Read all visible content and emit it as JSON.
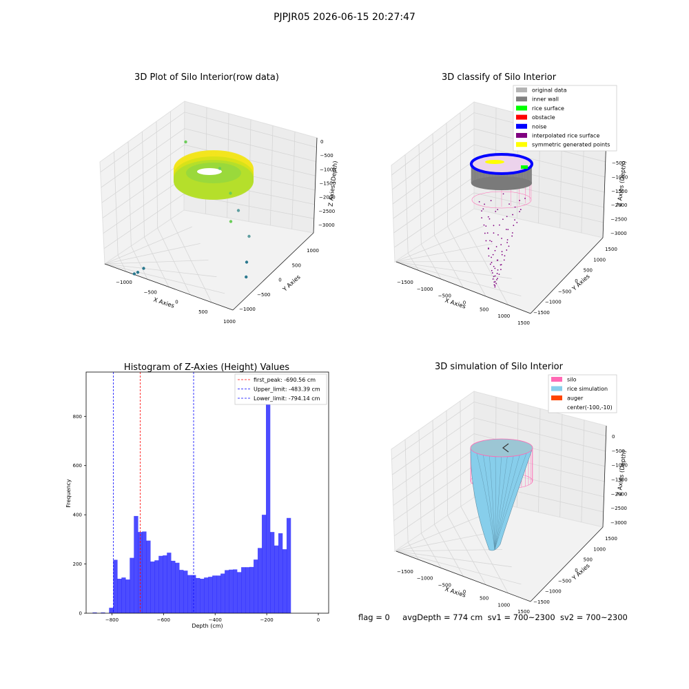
{
  "figure": {
    "suptitle": "PJPJR05 2026-06-15 20:27:47",
    "status_line": {
      "flag": "flag = 0",
      "avg_depth": "avgDepth = 774 cm",
      "sv1": "sv1 = 700~2300",
      "sv2": "sv2 = 700~2300"
    }
  },
  "chart_data": [
    {
      "type": "scatter3d",
      "title": "3D Plot of Silo Interior(row data)",
      "xlabel": "X Axies",
      "ylabel": "Y Axies",
      "zlabel": "Z Axies (Depth)",
      "x_ticks": [
        "−1000",
        "−500",
        "0",
        "500",
        "1000"
      ],
      "y_ticks": [
        "−1000",
        "−500",
        "0",
        "500",
        "1000"
      ],
      "z_ticks": [
        "0",
        "−500",
        "−1000",
        "−1500",
        "−2000",
        "−2500",
        "−3000"
      ],
      "xlim": [
        -1300,
        1100
      ],
      "ylim": [
        -1200,
        1200
      ],
      "zlim": [
        -3300,
        100
      ],
      "colormap": "viridis (yellow = shallow, teal = deep)",
      "ring": {
        "inner_radius": 600,
        "outer_radius": 950,
        "z_top": -100,
        "z_bottom": -700
      },
      "noise_points": [
        {
          "x": -900,
          "y": 600,
          "z": -800
        },
        {
          "x": 500,
          "y": -300,
          "z": -1600
        },
        {
          "x": 700,
          "y": -200,
          "z": -2300
        },
        {
          "x": 900,
          "y": -500,
          "z": -2800
        },
        {
          "x": 1050,
          "y": -700,
          "z": -3000
        },
        {
          "x": 300,
          "y": 100,
          "z": -2000
        },
        {
          "x": -200,
          "y": -1100,
          "z": -3100
        },
        {
          "x": -250,
          "y": -1150,
          "z": -3250
        },
        {
          "x": -280,
          "y": -1180,
          "z": -3300
        },
        {
          "x": 100,
          "y": 200,
          "z": -1550
        },
        {
          "x": -300,
          "y": 500,
          "z": -1300
        }
      ]
    },
    {
      "type": "scatter3d",
      "title": "3D classify of Silo Interior",
      "xlabel": "X Axies",
      "ylabel": "Y Axies",
      "zlabel": "Z Axies (Depth)",
      "x_ticks": [
        "−1500",
        "−1000",
        "−500",
        "0",
        "500",
        "1000",
        "1500"
      ],
      "y_ticks": [
        "−1500",
        "−1000",
        "−500",
        "0",
        "500",
        "1000",
        "1500"
      ],
      "z_ticks": [
        "−500",
        "−1000",
        "−1500",
        "−2000",
        "−2500",
        "−3000"
      ],
      "xlim": [
        -1700,
        1700
      ],
      "ylim": [
        -1700,
        1700
      ],
      "zlim": [
        -3000,
        -100
      ],
      "legend": [
        {
          "label": "original data",
          "color": "#b4b4b4"
        },
        {
          "label": "inner wall",
          "color": "#808080"
        },
        {
          "label": "rice surface",
          "color": "#00ff00"
        },
        {
          "label": "obstacle",
          "color": "#ff0000"
        },
        {
          "label": "noise",
          "color": "#0000ff"
        },
        {
          "label": "interpolated rice surface",
          "color": "#800080"
        },
        {
          "label": "symmetric generated points",
          "color": "#ffff00"
        }
      ],
      "legend_position": "top-right",
      "silo": {
        "radius": 1000,
        "z_top": -100,
        "z_bottom": -700,
        "wall_bottom": -1000
      },
      "cone": {
        "apex": {
          "x": -150,
          "y": -100,
          "z": -2950
        }
      }
    },
    {
      "type": "bar",
      "title": "Histogram of Z-Axies (Height) Values",
      "xlabel": "Depth (cm)",
      "ylabel": "Frequency",
      "xlim": [
        -900,
        40
      ],
      "ylim": [
        0,
        980
      ],
      "x_ticks": [
        -800,
        -600,
        -400,
        -200,
        0
      ],
      "y_ticks": [
        0,
        200,
        400,
        600,
        800
      ],
      "color": "#0000ff",
      "bin_edges_start": -875,
      "bin_width": 16,
      "counts": [
        3,
        0,
        3,
        0,
        22,
        217,
        140,
        145,
        137,
        225,
        395,
        330,
        332,
        295,
        210,
        215,
        233,
        235,
        246,
        213,
        205,
        176,
        173,
        155,
        155,
        143,
        140,
        145,
        148,
        153,
        153,
        161,
        175,
        177,
        178,
        167,
        187,
        187,
        188,
        218,
        265,
        400,
        920,
        330,
        275,
        325,
        260,
        387
      ],
      "reference_lines": [
        {
          "label": "first_peak: -690.56 cm",
          "x": -690.56,
          "color": "#ff0000"
        },
        {
          "label": "Upper_limit: -483.39 cm",
          "x": -483.39,
          "color": "#0000ff"
        },
        {
          "label": "Lower_limit: -794.14 cm",
          "x": -794.14,
          "color": "#0000ff"
        }
      ],
      "legend_position": "top-right"
    },
    {
      "type": "surface3d",
      "title": "3D simulation of Silo Interior",
      "xlabel": "X Axies",
      "ylabel": "Y Axies",
      "zlabel": "Z Axies (Depth)",
      "x_ticks": [
        "−1500",
        "−1000",
        "−500",
        "0",
        "500",
        "1000",
        "1500"
      ],
      "y_ticks": [
        "−1500",
        "−1000",
        "−500",
        "0",
        "500",
        "1000",
        "1500"
      ],
      "z_ticks": [
        "0",
        "−500",
        "−1000",
        "−1500",
        "−2000",
        "−2500",
        "−3000"
      ],
      "xlim": [
        -1700,
        1700
      ],
      "ylim": [
        -1700,
        1700
      ],
      "zlim": [
        -3000,
        100
      ],
      "legend": [
        {
          "label": "silo",
          "color": "#ff69b4"
        },
        {
          "label": "rice simulation",
          "color": "#87ceeb"
        },
        {
          "label": "auger",
          "color": "#ff4500"
        },
        {
          "label": "center(-100,-10)",
          "color": ""
        }
      ],
      "legend_position": "top-right",
      "silo": {
        "radius": 1000,
        "z_top": -100,
        "z_bottom": -700
      },
      "rice_apex": {
        "x": -100,
        "y": -10,
        "z": -2950
      }
    }
  ]
}
